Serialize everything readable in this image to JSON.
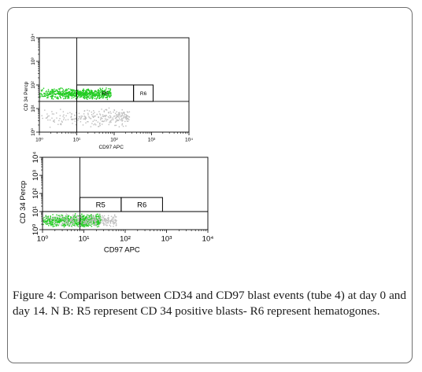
{
  "figure": {
    "caption_label": "Figure 4:",
    "caption_text": " Comparison between CD34 and CD97 blast events (tube 4) at day 0 and day 14. N B: R5 represent CD 34 positive blasts- R6 represent hematogones."
  },
  "colors": {
    "events_primary": "#22cc22",
    "events_dim": "#bdbdbd",
    "gate_line": "#000000"
  },
  "chart_data": [
    {
      "type": "scatter",
      "title": "",
      "xlabel": "CD97 APC",
      "ylabel": "CD 34 Percp",
      "x_scale": "log",
      "y_scale": "log",
      "xlim": [
        1,
        10000
      ],
      "ylim": [
        1,
        10000
      ],
      "x_ticks": [
        "10⁰",
        "10¹",
        "10²",
        "10³",
        "10⁴"
      ],
      "y_ticks": [
        "10⁰",
        "10¹",
        "10²",
        "10³",
        "10⁴"
      ],
      "gates": [
        {
          "label": "R5",
          "x": [
            10,
            330
          ],
          "y": [
            20,
            100
          ]
        },
        {
          "label": "R6",
          "x": [
            330,
            1100
          ],
          "y": [
            20,
            100
          ]
        }
      ],
      "quadrant_lines": {
        "x": 10,
        "y": 20
      },
      "populations": [
        {
          "name": "",
          "x_range": [
            1,
            80
          ],
          "y_range": [
            20,
            100
          ],
          "density": "high"
        },
        {
          "name": "",
          "x_range": [
            1,
            250
          ],
          "y_range": [
            1,
            20
          ],
          "density": "low"
        }
      ]
    },
    {
      "type": "scatter",
      "title": "",
      "xlabel": "CD97 APC",
      "ylabel": "CD 34 Percp",
      "x_scale": "log",
      "y_scale": "log",
      "xlim": [
        1,
        10000
      ],
      "ylim": [
        1,
        10000
      ],
      "x_ticks": [
        "10⁰",
        "10¹",
        "10²",
        "10³",
        "10⁴"
      ],
      "y_ticks": [
        "10⁰",
        "10¹",
        "10²",
        "10³",
        "10⁴"
      ],
      "gates": [
        {
          "label": "R5",
          "x": [
            8,
            80
          ],
          "y": [
            10,
            60
          ]
        },
        {
          "label": "R6",
          "x": [
            80,
            800
          ],
          "y": [
            10,
            60
          ]
        }
      ],
      "quadrant_lines": {
        "x": 8,
        "y": 10
      },
      "populations": [
        {
          "name": "",
          "x_range": [
            1,
            25
          ],
          "y_range": [
            1,
            12
          ],
          "density": "high"
        },
        {
          "name": "",
          "x_range": [
            1,
            60
          ],
          "y_range": [
            1,
            12
          ],
          "density": "low"
        }
      ]
    }
  ]
}
